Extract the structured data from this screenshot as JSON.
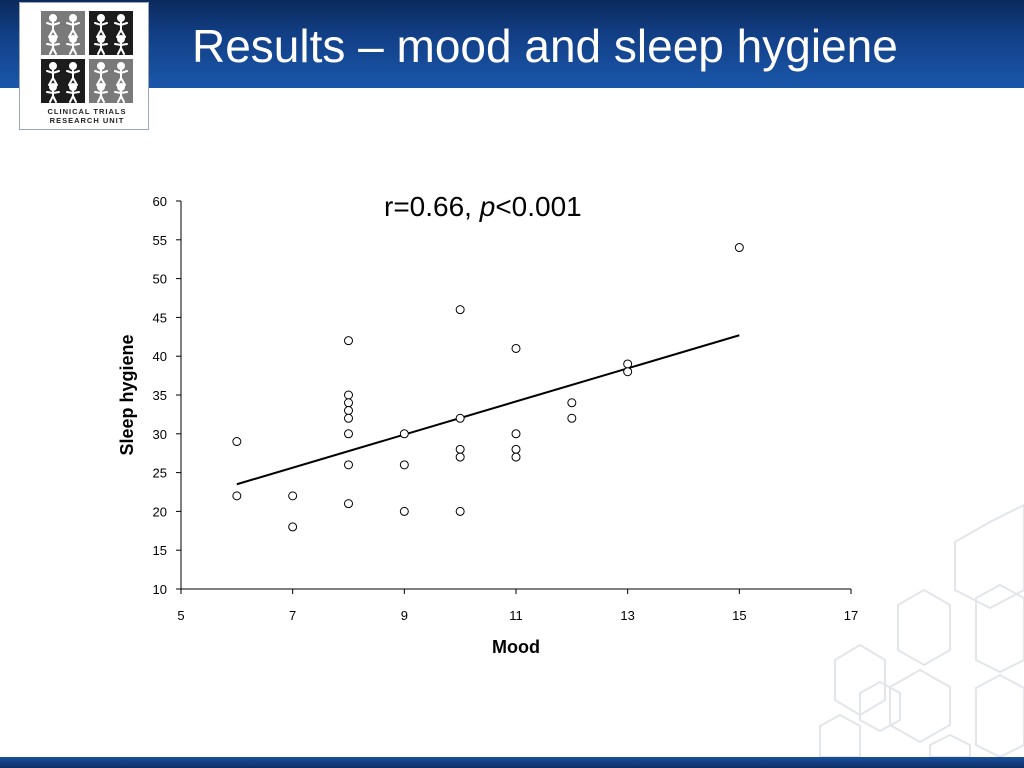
{
  "slide": {
    "title": "Results – mood and sleep hygiene",
    "logo_text_line1": "CLINICAL TRIALS",
    "logo_text_line2": "RESEARCH UNIT",
    "colors": {
      "header": "#123f86",
      "accent": "#1a57aa",
      "hex_outline": "#e2e6ea"
    }
  },
  "chart_data": {
    "type": "scatter",
    "annotation": {
      "r_text": "r=0.66, ",
      "p_symbol": "p",
      "p_text": "<0.001"
    },
    "xlabel": "Mood",
    "ylabel": "Sleep hygiene",
    "xlim": [
      5,
      17
    ],
    "ylim": [
      10,
      60
    ],
    "xticks": [
      5,
      7,
      9,
      11,
      13,
      15,
      17
    ],
    "yticks": [
      10,
      15,
      20,
      25,
      30,
      35,
      40,
      45,
      50,
      55,
      60
    ],
    "points": [
      {
        "x": 6,
        "y": 29
      },
      {
        "x": 6,
        "y": 22
      },
      {
        "x": 7,
        "y": 22
      },
      {
        "x": 7,
        "y": 18
      },
      {
        "x": 8,
        "y": 42
      },
      {
        "x": 8,
        "y": 35
      },
      {
        "x": 8,
        "y": 34
      },
      {
        "x": 8,
        "y": 33
      },
      {
        "x": 8,
        "y": 32
      },
      {
        "x": 8,
        "y": 30
      },
      {
        "x": 8,
        "y": 26
      },
      {
        "x": 8,
        "y": 21
      },
      {
        "x": 9,
        "y": 30
      },
      {
        "x": 9,
        "y": 26
      },
      {
        "x": 9,
        "y": 20
      },
      {
        "x": 10,
        "y": 46
      },
      {
        "x": 10,
        "y": 32
      },
      {
        "x": 10,
        "y": 28
      },
      {
        "x": 10,
        "y": 27
      },
      {
        "x": 10,
        "y": 20
      },
      {
        "x": 11,
        "y": 41
      },
      {
        "x": 11,
        "y": 30
      },
      {
        "x": 11,
        "y": 28
      },
      {
        "x": 11,
        "y": 27
      },
      {
        "x": 12,
        "y": 34
      },
      {
        "x": 12,
        "y": 32
      },
      {
        "x": 13,
        "y": 39
      },
      {
        "x": 13,
        "y": 38
      },
      {
        "x": 15,
        "y": 54
      }
    ],
    "trendline": {
      "x": [
        6,
        15
      ],
      "y": [
        23.5,
        42.7
      ]
    },
    "grid": false,
    "legend": "none"
  }
}
